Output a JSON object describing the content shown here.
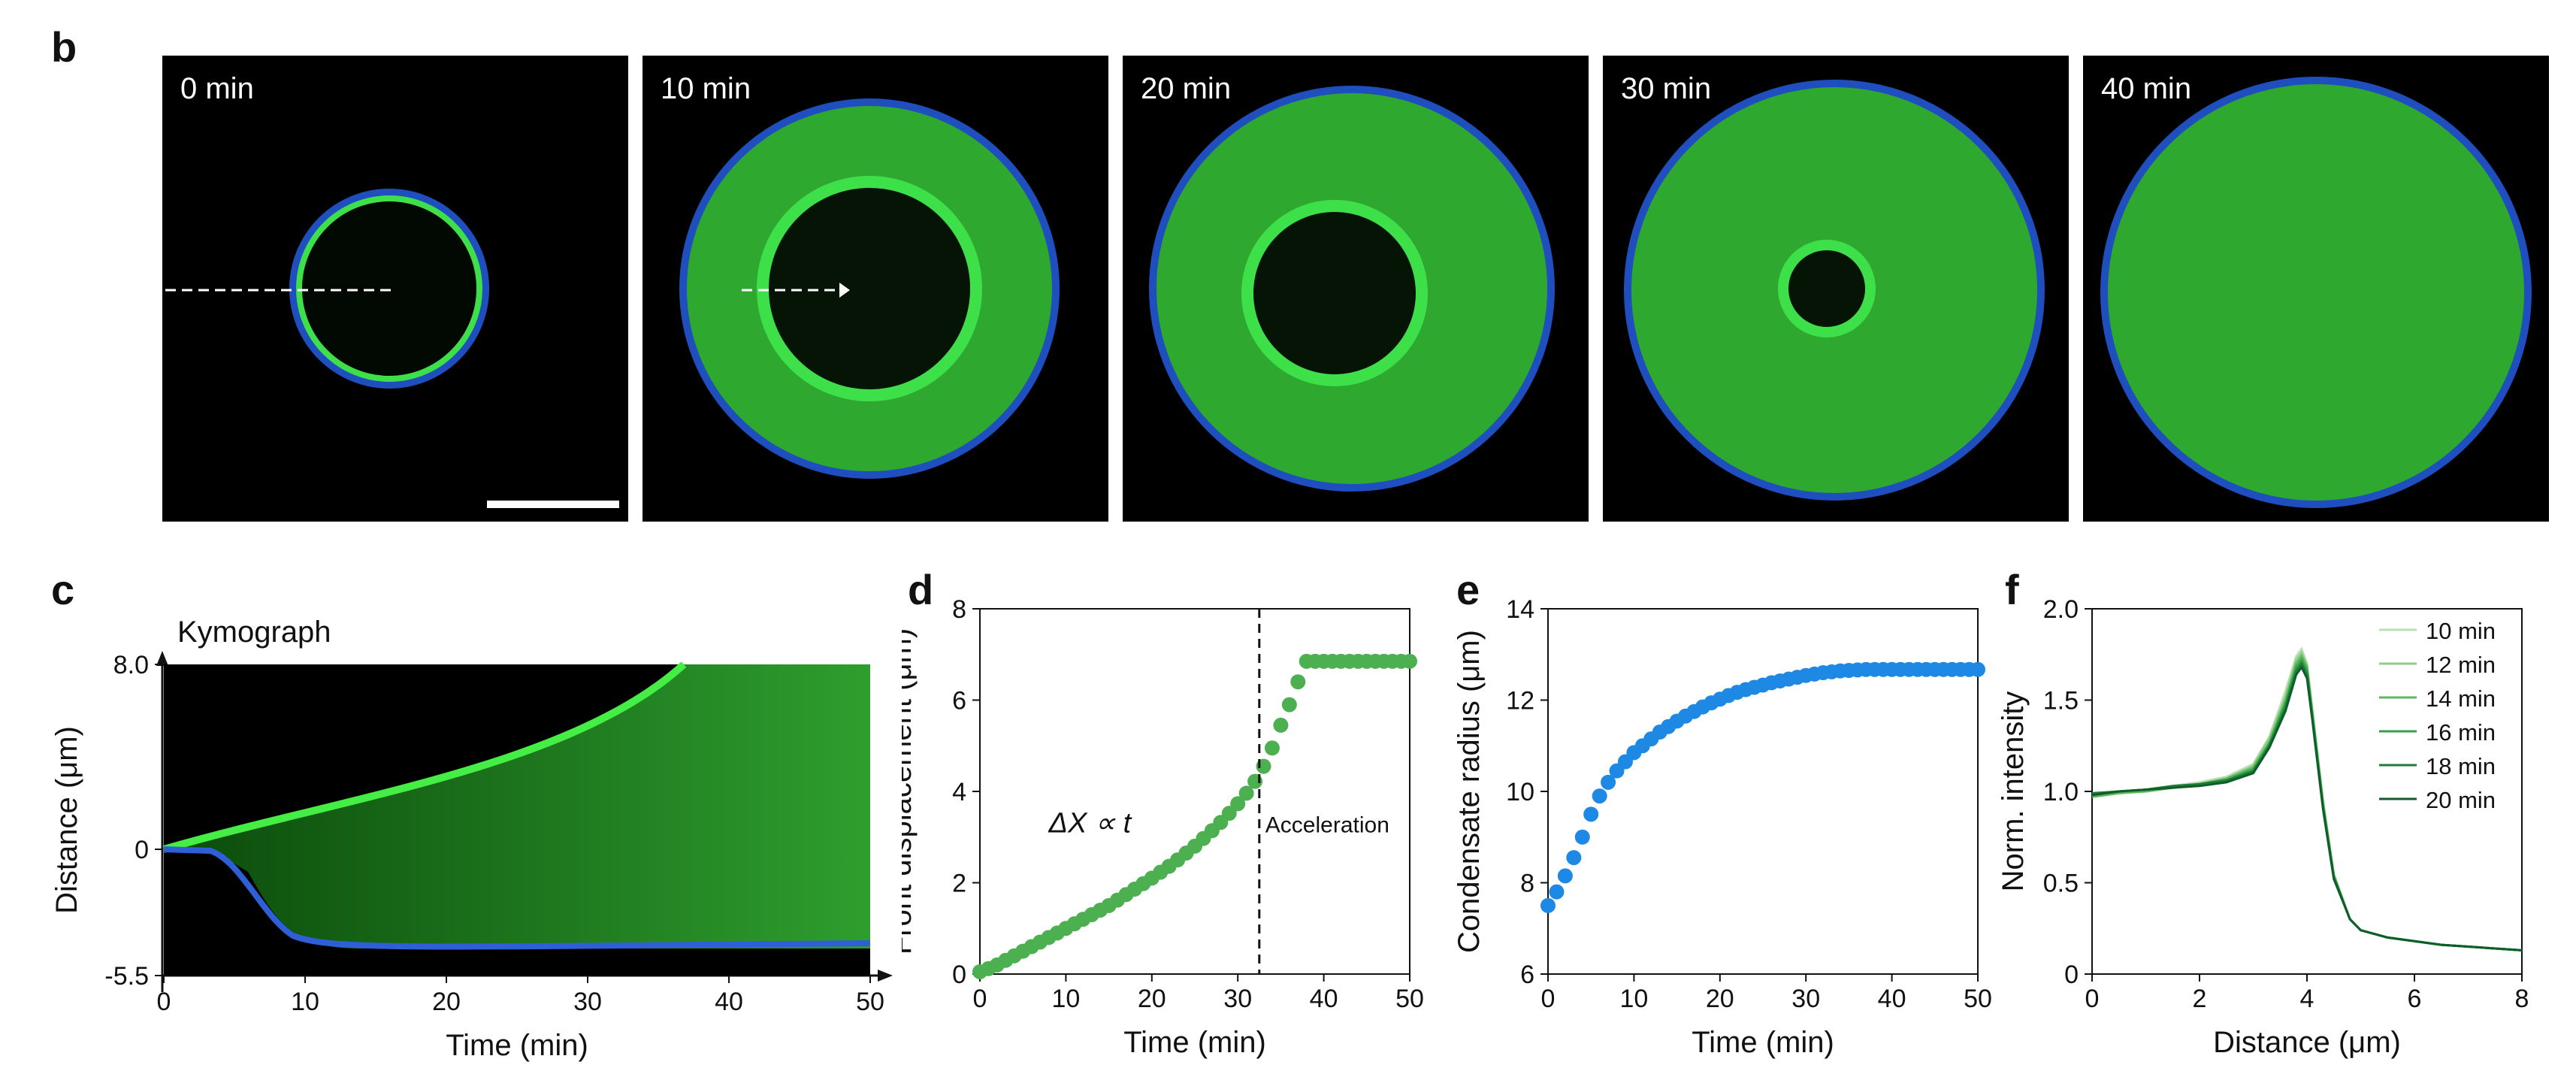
{
  "panel_b": {
    "letter": "b",
    "frames": [
      {
        "time_label": "0 min",
        "radius_frac": 0.21,
        "condensate_frac": 0
      },
      {
        "time_label": "10 min",
        "radius_frac": 0.4,
        "condensate_frac": 0.23
      },
      {
        "time_label": "20 min",
        "radius_frac": 0.43,
        "condensate_frac": 0.18
      },
      {
        "time_label": "30 min",
        "radius_frac": 0.45,
        "condensate_frac": 0.09
      },
      {
        "time_label": "40 min",
        "radius_frac": 0.46,
        "condensate_frac": 0
      }
    ]
  },
  "panel_c": {
    "letter": "c",
    "title": "Kymograph",
    "xlabel": "Time (min)",
    "ylabel": "Distance (μm)",
    "xticks": [
      "0",
      "10",
      "20",
      "30",
      "40",
      "50"
    ],
    "yticks": [
      "8.0",
      "0",
      "-5.5"
    ]
  },
  "panel_d": {
    "letter": "d",
    "annotation_law": "ΔX ∝ t",
    "annotation_phase": "Acceleration",
    "vline_x": 32.5
  },
  "panel_f": {
    "letter": "f"
  },
  "colors": {
    "green": "#4caf50",
    "blue": "#1e88e5",
    "dark_green": "#0d5e2a"
  },
  "chart_data": [
    {
      "id": "d",
      "type": "scatter",
      "xlabel": "Time (min)",
      "ylabel": "Front displacement (μm)",
      "xlim": [
        0,
        50
      ],
      "ylim": [
        0,
        8
      ],
      "xticks": [
        0,
        10,
        20,
        30,
        40,
        50
      ],
      "yticks": [
        0,
        2,
        4,
        6,
        8
      ],
      "x": [
        0,
        1,
        2,
        3,
        4,
        5,
        6,
        7,
        8,
        9,
        10,
        11,
        12,
        13,
        14,
        15,
        16,
        17,
        18,
        19,
        20,
        21,
        22,
        23,
        24,
        25,
        26,
        27,
        28,
        29,
        30,
        31,
        32,
        33,
        34,
        35,
        36,
        37,
        38,
        39,
        40,
        41,
        42,
        43,
        44,
        45,
        46,
        47,
        48,
        49,
        50
      ],
      "y": [
        0.05,
        0.12,
        0.2,
        0.3,
        0.4,
        0.5,
        0.6,
        0.7,
        0.8,
        0.9,
        1.0,
        1.1,
        1.2,
        1.3,
        1.4,
        1.5,
        1.62,
        1.74,
        1.86,
        1.98,
        2.1,
        2.23,
        2.36,
        2.5,
        2.65,
        2.8,
        2.97,
        3.14,
        3.32,
        3.52,
        3.73,
        3.96,
        4.22,
        4.55,
        4.95,
        5.45,
        5.9,
        6.4,
        6.85,
        6.85,
        6.85,
        6.85,
        6.85,
        6.85,
        6.85,
        6.85,
        6.85,
        6.85,
        6.85,
        6.85,
        6.85
      ]
    },
    {
      "id": "e",
      "type": "scatter",
      "xlabel": "Time (min)",
      "ylabel": "Condensate radius (μm)",
      "xlim": [
        0,
        50
      ],
      "ylim": [
        6,
        14
      ],
      "xticks": [
        0,
        10,
        20,
        30,
        40,
        50
      ],
      "yticks": [
        6,
        8,
        10,
        12,
        14
      ],
      "x": [
        0,
        1,
        2,
        3,
        4,
        5,
        6,
        7,
        8,
        9,
        10,
        11,
        12,
        13,
        14,
        15,
        16,
        17,
        18,
        19,
        20,
        21,
        22,
        23,
        24,
        25,
        26,
        27,
        28,
        29,
        30,
        31,
        32,
        33,
        34,
        35,
        36,
        37,
        38,
        39,
        40,
        41,
        42,
        43,
        44,
        45,
        46,
        47,
        48,
        49,
        50
      ],
      "y": [
        7.5,
        7.8,
        8.15,
        8.55,
        9.0,
        9.5,
        9.9,
        10.2,
        10.45,
        10.65,
        10.85,
        11.0,
        11.15,
        11.3,
        11.42,
        11.54,
        11.65,
        11.75,
        11.85,
        11.94,
        12.02,
        12.1,
        12.17,
        12.23,
        12.28,
        12.33,
        12.38,
        12.42,
        12.46,
        12.5,
        12.54,
        12.57,
        12.6,
        12.62,
        12.64,
        12.65,
        12.66,
        12.67,
        12.67,
        12.67,
        12.67,
        12.67,
        12.67,
        12.67,
        12.67,
        12.67,
        12.67,
        12.67,
        12.67,
        12.67,
        12.67
      ]
    },
    {
      "id": "f",
      "type": "line",
      "xlabel": "Distance (μm)",
      "ylabel": "Norm. intensity",
      "xlim": [
        0,
        8
      ],
      "ylim": [
        0,
        2.0
      ],
      "xticks": [
        0,
        2,
        4,
        6,
        8
      ],
      "ytick_labels": [
        "0",
        "0.5",
        "1.0",
        "1.5",
        "2.0"
      ],
      "yticks": [
        0,
        0.5,
        1.0,
        1.5,
        2.0
      ],
      "legend_position": "top-right",
      "x": [
        0,
        0.5,
        1.0,
        1.5,
        2.0,
        2.5,
        3.0,
        3.3,
        3.6,
        3.8,
        3.9,
        4.0,
        4.1,
        4.3,
        4.5,
        4.8,
        5.0,
        5.5,
        6.0,
        6.5,
        7.0,
        7.5,
        8.0
      ],
      "series": [
        {
          "name": "10 min",
          "color": "#b9e0b3",
          "values": [
            0.99,
            1.0,
            1.01,
            1.03,
            1.05,
            1.08,
            1.15,
            1.3,
            1.55,
            1.74,
            1.78,
            1.7,
            1.45,
            0.95,
            0.55,
            0.3,
            0.24,
            0.2,
            0.18,
            0.16,
            0.15,
            0.14,
            0.13
          ]
        },
        {
          "name": "12 min",
          "color": "#8fce88",
          "values": [
            0.98,
            1.0,
            1.0,
            1.02,
            1.04,
            1.07,
            1.14,
            1.29,
            1.52,
            1.72,
            1.76,
            1.69,
            1.44,
            0.94,
            0.54,
            0.3,
            0.24,
            0.2,
            0.18,
            0.16,
            0.15,
            0.14,
            0.13
          ]
        },
        {
          "name": "14 min",
          "color": "#5cb85c",
          "values": [
            0.97,
            0.99,
            1.0,
            1.02,
            1.04,
            1.07,
            1.13,
            1.27,
            1.5,
            1.7,
            1.74,
            1.68,
            1.43,
            0.93,
            0.54,
            0.3,
            0.24,
            0.2,
            0.18,
            0.16,
            0.15,
            0.14,
            0.13
          ]
        },
        {
          "name": "16 min",
          "color": "#34a04a",
          "values": [
            0.98,
            1.0,
            1.01,
            1.02,
            1.04,
            1.06,
            1.12,
            1.26,
            1.48,
            1.68,
            1.72,
            1.66,
            1.42,
            0.92,
            0.53,
            0.3,
            0.24,
            0.2,
            0.18,
            0.16,
            0.15,
            0.14,
            0.13
          ]
        },
        {
          "name": "18 min",
          "color": "#1f7d38",
          "values": [
            0.99,
            1.0,
            1.01,
            1.03,
            1.04,
            1.06,
            1.11,
            1.25,
            1.46,
            1.66,
            1.7,
            1.64,
            1.4,
            0.91,
            0.53,
            0.3,
            0.24,
            0.2,
            0.18,
            0.16,
            0.15,
            0.14,
            0.13
          ]
        },
        {
          "name": "20 min",
          "color": "#0d5e2a",
          "values": [
            0.98,
            1.0,
            1.01,
            1.02,
            1.03,
            1.05,
            1.1,
            1.24,
            1.44,
            1.64,
            1.68,
            1.62,
            1.39,
            0.9,
            0.52,
            0.3,
            0.24,
            0.2,
            0.18,
            0.16,
            0.15,
            0.14,
            0.13
          ]
        }
      ]
    }
  ]
}
